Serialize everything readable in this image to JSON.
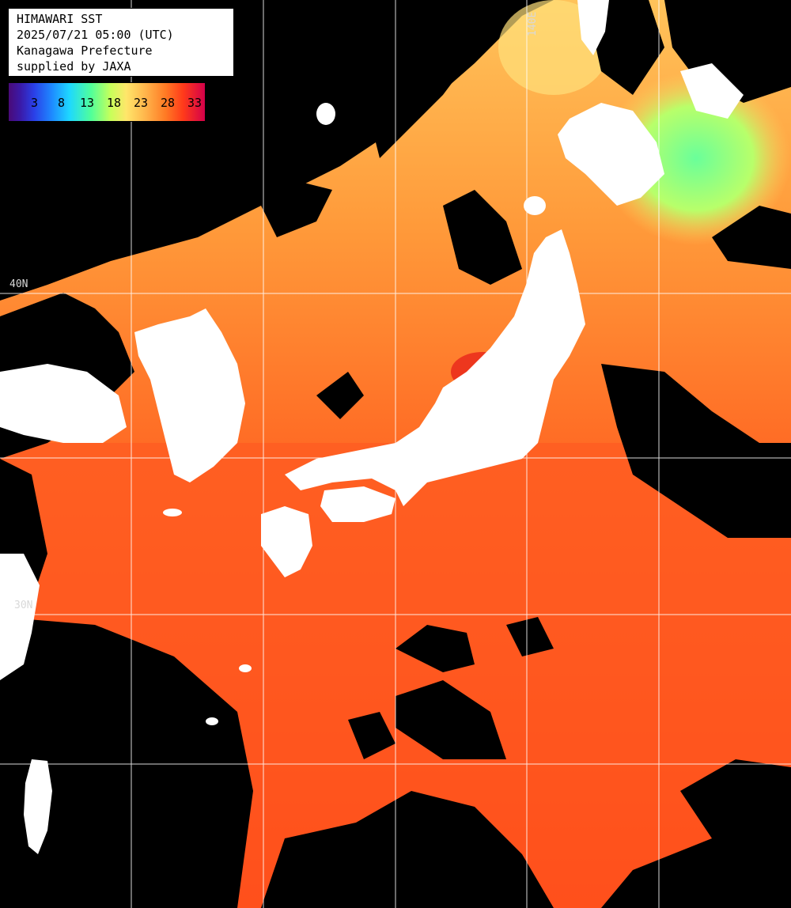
{
  "title_box": {
    "line1": "HIMAWARI SST",
    "line2": "2025/07/21 05:00 (UTC)",
    "line3": "Kanagawa Prefecture",
    "line4": "supplied by JAXA"
  },
  "legend": {
    "ticks": [
      "3",
      "8",
      "13",
      "18",
      "23",
      "28",
      "33"
    ],
    "colors": {
      "min": "#4a0a78",
      "low": "#1e8aff",
      "mid": "#50ff9a",
      "warm": "#ffe66a",
      "hot": "#ff7a24",
      "max": "#d4004a"
    }
  },
  "grid_labels": {
    "lon_140e": "140E",
    "lat_40n": "40N",
    "lat_30n": "30N"
  },
  "map_colors": {
    "land": "#ffffff",
    "no_data": "#000000",
    "sea_warm": "#ff5a1e",
    "sea_mild": "#ffa040",
    "sea_cool": "#9cff6a",
    "grid": "#ffffff"
  }
}
